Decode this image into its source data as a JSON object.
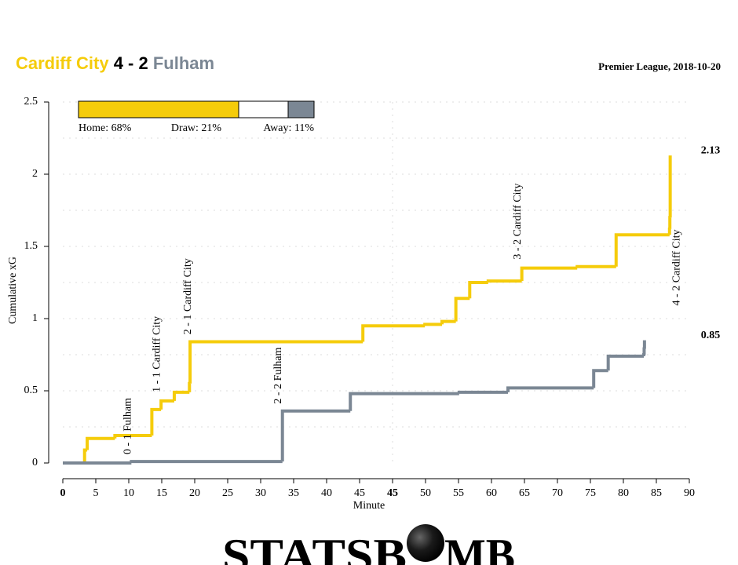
{
  "chart_data": {
    "type": "step",
    "home_team": "Cardiff City",
    "score": "4 - 2",
    "away_team": "Fulham",
    "subtitle": "Premier League, 2018-10-20",
    "xlabel": "Minute",
    "ylabel": "Cumulative xG",
    "xlim": [
      0,
      95
    ],
    "ylim": [
      0,
      2.5
    ],
    "xticks": [
      {
        "value": 0,
        "label": "0",
        "bold": true
      },
      5,
      10,
      15,
      20,
      25,
      30,
      35,
      40,
      45,
      {
        "value": 50,
        "label": "45",
        "bold": true
      },
      {
        "value": 55,
        "label": "50"
      },
      {
        "value": 60,
        "label": "55"
      },
      {
        "value": 65,
        "label": "60"
      },
      {
        "value": 70,
        "label": "65"
      },
      {
        "value": 75,
        "label": "70"
      },
      {
        "value": 80,
        "label": "75"
      },
      {
        "value": 85,
        "label": "80"
      },
      {
        "value": 90,
        "label": "85"
      },
      {
        "value": 95,
        "label": "90"
      }
    ],
    "yticks": [
      0,
      0.5,
      1,
      1.5,
      2,
      2.5
    ],
    "minor_yticks": [
      0.25,
      0.75,
      1.25,
      1.75,
      2.25
    ],
    "grid": true,
    "series": [
      {
        "name": "Cardiff City",
        "color": "#f5cc0b",
        "x": [
          0,
          3.3,
          3.7,
          7.9,
          13.5,
          14.9,
          16.9,
          19.2,
          19.3,
          45.5,
          54.9,
          57.5,
          59.6,
          61.7,
          64.5,
          69.6,
          78.0,
          83.9,
          92.0,
          92.05,
          92.1
        ],
        "values": [
          0,
          0.09,
          0.17,
          0.19,
          0.37,
          0.43,
          0.49,
          0.55,
          0.84,
          0.95,
          0.96,
          0.98,
          1.14,
          1.25,
          1.26,
          1.35,
          1.36,
          1.58,
          1.62,
          1.7,
          2.13
        ]
      },
      {
        "name": "Fulham",
        "color": "#7b8794",
        "x": [
          0,
          10.4,
          33.3,
          43.6,
          60.1,
          67.5,
          80.5,
          82.7,
          88.1,
          88.15,
          88.2
        ],
        "values": [
          0,
          0.01,
          0.36,
          0.48,
          0.49,
          0.52,
          0.64,
          0.74,
          0.75,
          0.79,
          0.85
        ]
      }
    ],
    "annotations": [
      {
        "text": "0 - 1 Fulham",
        "x": 9.9,
        "y": 0.06,
        "color": "#7b8794"
      },
      {
        "text": "1 - 1 Cardiff City",
        "x": 14.3,
        "y": 0.49,
        "color": "#f5cc0b"
      },
      {
        "text": "2 - 1 Cardiff City",
        "x": 19.0,
        "y": 0.89,
        "color": "#f5cc0b"
      },
      {
        "text": "2 - 2 Fulham",
        "x": 32.7,
        "y": 0.41,
        "color": "#7b8794"
      },
      {
        "text": "3 - 2 Cardiff City",
        "x": 69.0,
        "y": 1.41,
        "color": "#f5cc0b"
      },
      {
        "text": "4 - 2 Cardiff City",
        "x": 93.1,
        "y": 1.09,
        "color": "#f5cc0b"
      }
    ],
    "probabilities": {
      "values": [
        68,
        21,
        11
      ],
      "value_labels": [
        "Home: 68%",
        "Draw: 21%",
        "Away: 11%"
      ],
      "colors": [
        "#f5cc0b",
        "#ffffff",
        "#7b8794"
      ]
    },
    "logo_left": "STATSB",
    "logo_right": "MB",
    "logo_color": "#e3242b"
  }
}
